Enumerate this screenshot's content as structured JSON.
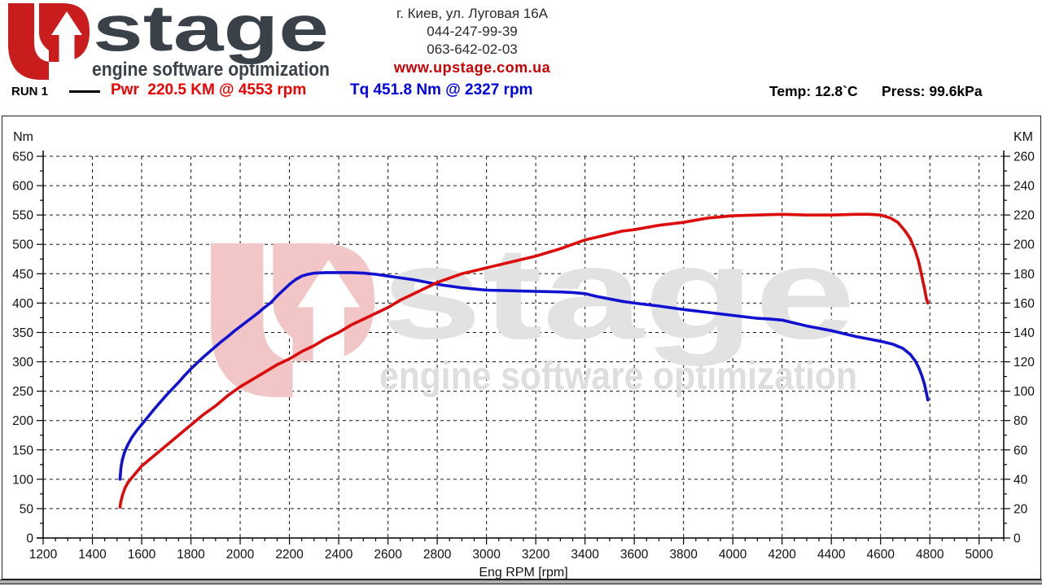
{
  "header": {
    "logo": {
      "wordmark": "stage",
      "tagline": "engine software optimization",
      "monogram_color": "#c91c1c",
      "text_color": "#3a4149"
    },
    "contact": {
      "address": "г. Киев, ул. Луговая 16А",
      "phone1": "044-247-99-39",
      "phone2": "063-642-02-03",
      "website": "www.upstage.com.ua"
    }
  },
  "run_info": {
    "run_label": "RUN 1",
    "power_result": "Pwr  220.5 KM @ 4553 rpm",
    "torque_result": "Tq 451.8 Nm @ 2327 rpm",
    "temperature": "Temp: 12.8`C",
    "pressure": "Press: 99.6kPa"
  },
  "colors": {
    "power_curve": "#dc0a0a",
    "torque_curve": "#1111cf",
    "grid": "#141414",
    "watermark_pink": "#f2c6c7",
    "watermark_gray": "#e2e2e2",
    "watermark_gray2": "#dedede"
  },
  "chart_data": {
    "type": "line",
    "xlabel": "Eng RPM [rpm]",
    "x_range": [
      1200,
      5100
    ],
    "x_major_step": 200,
    "x_minor_step": 50,
    "x_label_max": 5000,
    "left_axis": {
      "label": "Nm",
      "range": [
        0,
        650
      ],
      "major_step": 50,
      "minor_step": 25
    },
    "right_axis": {
      "label": "KM",
      "range": [
        0,
        260
      ],
      "major_step": 20,
      "minor_step": 10
    },
    "grid": "dashed",
    "legend_position": "top-header",
    "series": [
      {
        "name": "Torque",
        "axis": "left",
        "unit": "Nm",
        "color": "#1111cf",
        "peak": "451.8 Nm @ 2327 rpm",
        "points": [
          [
            1512,
            100
          ],
          [
            1516,
            120
          ],
          [
            1522,
            134
          ],
          [
            1532,
            148
          ],
          [
            1545,
            160
          ],
          [
            1560,
            171
          ],
          [
            1580,
            183
          ],
          [
            1600,
            193
          ],
          [
            1625,
            206
          ],
          [
            1650,
            219
          ],
          [
            1675,
            231
          ],
          [
            1700,
            243
          ],
          [
            1725,
            254
          ],
          [
            1750,
            265
          ],
          [
            1775,
            277
          ],
          [
            1800,
            288
          ],
          [
            1825,
            298
          ],
          [
            1850,
            308
          ],
          [
            1875,
            317
          ],
          [
            1900,
            326
          ],
          [
            1925,
            335
          ],
          [
            1950,
            343
          ],
          [
            1975,
            352
          ],
          [
            2000,
            360
          ],
          [
            2025,
            368
          ],
          [
            2050,
            376
          ],
          [
            2075,
            384
          ],
          [
            2100,
            393
          ],
          [
            2125,
            401
          ],
          [
            2150,
            412
          ],
          [
            2175,
            422
          ],
          [
            2200,
            432
          ],
          [
            2225,
            440
          ],
          [
            2250,
            446
          ],
          [
            2275,
            449
          ],
          [
            2300,
            451
          ],
          [
            2350,
            452
          ],
          [
            2400,
            452
          ],
          [
            2450,
            452
          ],
          [
            2500,
            451
          ],
          [
            2550,
            449
          ],
          [
            2600,
            446
          ],
          [
            2650,
            443
          ],
          [
            2700,
            440
          ],
          [
            2750,
            436
          ],
          [
            2800,
            432
          ],
          [
            2850,
            429
          ],
          [
            2900,
            426
          ],
          [
            2950,
            424
          ],
          [
            3000,
            422
          ],
          [
            3100,
            421
          ],
          [
            3200,
            420
          ],
          [
            3300,
            419
          ],
          [
            3350,
            418
          ],
          [
            3400,
            416
          ],
          [
            3450,
            411
          ],
          [
            3500,
            407
          ],
          [
            3550,
            403
          ],
          [
            3600,
            400
          ],
          [
            3700,
            395
          ],
          [
            3800,
            389
          ],
          [
            3900,
            384
          ],
          [
            4000,
            379
          ],
          [
            4100,
            374
          ],
          [
            4150,
            373
          ],
          [
            4200,
            371
          ],
          [
            4250,
            366
          ],
          [
            4300,
            361
          ],
          [
            4350,
            357
          ],
          [
            4400,
            353
          ],
          [
            4450,
            348
          ],
          [
            4500,
            343
          ],
          [
            4550,
            339
          ],
          [
            4600,
            335
          ],
          [
            4650,
            330
          ],
          [
            4690,
            323
          ],
          [
            4720,
            313
          ],
          [
            4740,
            302
          ],
          [
            4755,
            290
          ],
          [
            4768,
            276
          ],
          [
            4778,
            262
          ],
          [
            4786,
            247
          ],
          [
            4792,
            235
          ]
        ]
      },
      {
        "name": "Power",
        "axis": "right",
        "unit": "KM",
        "color": "#dc0a0a",
        "peak": "220.5 KM @ 4553 rpm",
        "points": [
          [
            1512,
            21
          ],
          [
            1516,
            25
          ],
          [
            1522,
            29
          ],
          [
            1532,
            34
          ],
          [
            1545,
            38
          ],
          [
            1560,
            41
          ],
          [
            1580,
            45
          ],
          [
            1600,
            49
          ],
          [
            1650,
            56
          ],
          [
            1700,
            63
          ],
          [
            1750,
            70
          ],
          [
            1800,
            77
          ],
          [
            1850,
            84
          ],
          [
            1900,
            90
          ],
          [
            1950,
            97
          ],
          [
            2000,
            103
          ],
          [
            2050,
            108
          ],
          [
            2100,
            113
          ],
          [
            2150,
            118
          ],
          [
            2200,
            122
          ],
          [
            2250,
            127
          ],
          [
            2300,
            131
          ],
          [
            2350,
            136
          ],
          [
            2400,
            140
          ],
          [
            2450,
            145
          ],
          [
            2500,
            149
          ],
          [
            2550,
            153
          ],
          [
            2600,
            157
          ],
          [
            2650,
            162
          ],
          [
            2700,
            166
          ],
          [
            2750,
            170
          ],
          [
            2800,
            174
          ],
          [
            2850,
            177
          ],
          [
            2900,
            180
          ],
          [
            2950,
            182
          ],
          [
            3000,
            184
          ],
          [
            3050,
            186
          ],
          [
            3100,
            188
          ],
          [
            3150,
            190
          ],
          [
            3200,
            192
          ],
          [
            3300,
            197
          ],
          [
            3400,
            203
          ],
          [
            3450,
            205
          ],
          [
            3500,
            207
          ],
          [
            3550,
            209
          ],
          [
            3600,
            210
          ],
          [
            3700,
            213
          ],
          [
            3800,
            215
          ],
          [
            3900,
            218
          ],
          [
            4000,
            219.5
          ],
          [
            4100,
            220
          ],
          [
            4200,
            220.5
          ],
          [
            4300,
            220
          ],
          [
            4400,
            220
          ],
          [
            4500,
            220.5
          ],
          [
            4553,
            220.5
          ],
          [
            4600,
            220
          ],
          [
            4640,
            218
          ],
          [
            4670,
            215
          ],
          [
            4700,
            209
          ],
          [
            4720,
            204
          ],
          [
            4740,
            196
          ],
          [
            4755,
            188
          ],
          [
            4768,
            178
          ],
          [
            4778,
            170
          ],
          [
            4786,
            163
          ],
          [
            4792,
            160
          ]
        ]
      }
    ]
  }
}
